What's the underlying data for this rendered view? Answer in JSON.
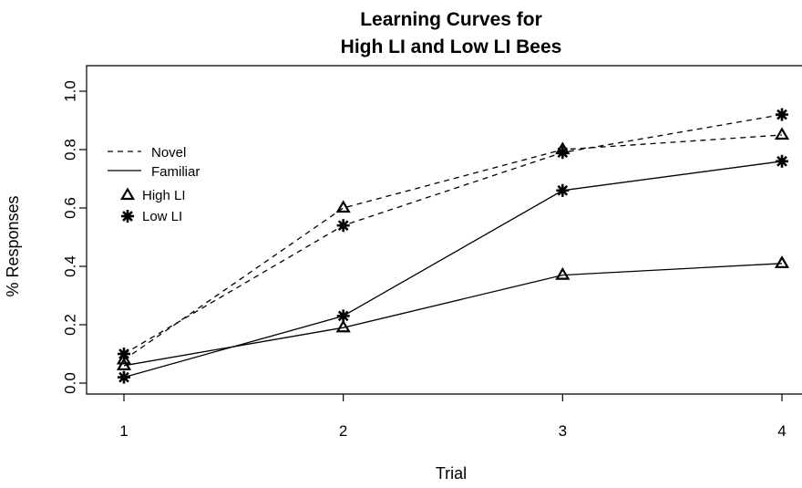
{
  "chart_data": {
    "type": "line",
    "title_line1": "Learning Curves for",
    "title_line2": "High LI and Low LI Bees",
    "xlabel": "Trial",
    "ylabel": "% Responses",
    "x": [
      1,
      2,
      3,
      4
    ],
    "x_ticks": [
      "1",
      "2",
      "3",
      "4"
    ],
    "xlim": [
      1,
      4
    ],
    "y_ticks": [
      "0.0",
      "0.2",
      "0.4",
      "0.6",
      "0.8",
      "1.0"
    ],
    "ylim": [
      0,
      1
    ],
    "grid": false,
    "legend": {
      "position": "top-left",
      "line_entries": [
        {
          "label": "Novel",
          "style": "dashed"
        },
        {
          "label": "Familiar",
          "style": "solid"
        }
      ],
      "marker_entries": [
        {
          "label": "High LI",
          "marker": "triangle"
        },
        {
          "label": "Low LI",
          "marker": "asterisk"
        }
      ]
    },
    "series": [
      {
        "group": "High LI",
        "condition": "Novel",
        "line": "dashed",
        "marker": "triangle",
        "values": [
          0.08,
          0.6,
          0.8,
          0.85
        ]
      },
      {
        "group": "Low LI",
        "condition": "Novel",
        "line": "dashed",
        "marker": "asterisk",
        "values": [
          0.1,
          0.54,
          0.79,
          0.92
        ]
      },
      {
        "group": "High LI",
        "condition": "Familiar",
        "line": "solid",
        "marker": "triangle",
        "values": [
          0.06,
          0.19,
          0.37,
          0.41
        ]
      },
      {
        "group": "Low LI",
        "condition": "Familiar",
        "line": "solid",
        "marker": "asterisk",
        "values": [
          0.02,
          0.23,
          0.66,
          0.76
        ]
      }
    ],
    "colors": {
      "line": "#000000",
      "background": "#ffffff"
    }
  }
}
